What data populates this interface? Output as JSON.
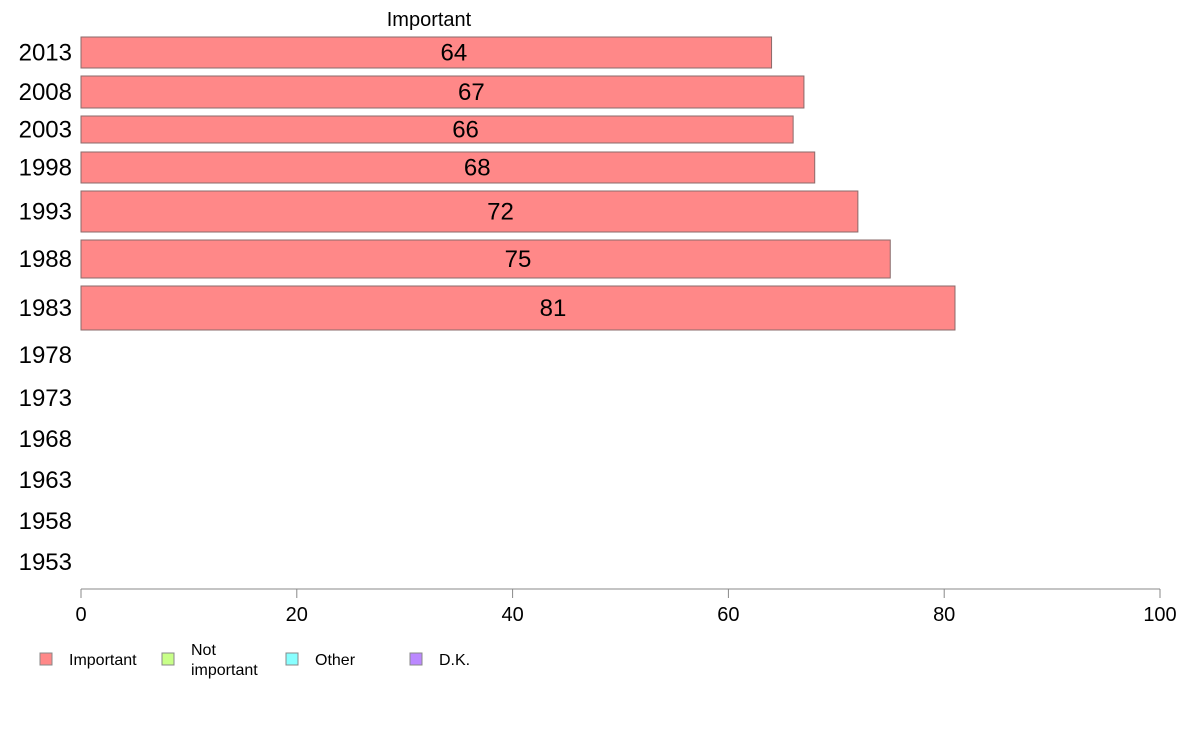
{
  "chart_data": {
    "type": "bar",
    "orientation": "horizontal",
    "column_header": "Important",
    "categories": [
      "2013",
      "2008",
      "2003",
      "1998",
      "1993",
      "1988",
      "1983",
      "1978",
      "1973",
      "1968",
      "1963",
      "1958",
      "1953"
    ],
    "series": [
      {
        "name": "Important",
        "color": "#ff8888",
        "values": [
          64,
          67,
          66,
          68,
          72,
          75,
          81,
          null,
          null,
          null,
          null,
          null,
          null
        ]
      },
      {
        "name": "Not important",
        "color": "#c8ff88",
        "values": [
          null,
          null,
          null,
          null,
          null,
          null,
          null,
          null,
          null,
          null,
          null,
          null,
          null
        ]
      },
      {
        "name": "Other",
        "color": "#88ffff",
        "values": [
          null,
          null,
          null,
          null,
          null,
          null,
          null,
          null,
          null,
          null,
          null,
          null,
          null
        ]
      },
      {
        "name": "D.K.",
        "color": "#bb88ff",
        "values": [
          null,
          null,
          null,
          null,
          null,
          null,
          null,
          null,
          null,
          null,
          null,
          null,
          null
        ]
      }
    ],
    "data_labels": [
      "64",
      "67",
      "66",
      "68",
      "72",
      "75",
      "81"
    ],
    "xlim": [
      0,
      100
    ],
    "xticks": [
      0,
      20,
      40,
      60,
      80,
      100
    ],
    "grid": false,
    "legend_position": "bottom",
    "legend": [
      {
        "label_lines": [
          "Important"
        ],
        "color": "#ff8888"
      },
      {
        "label_lines": [
          "Not",
          "important"
        ],
        "color": "#c8ff88"
      },
      {
        "label_lines": [
          "Other"
        ],
        "color": "#88ffff"
      },
      {
        "label_lines": [
          "D.K."
        ],
        "color": "#bb88ff"
      }
    ]
  }
}
